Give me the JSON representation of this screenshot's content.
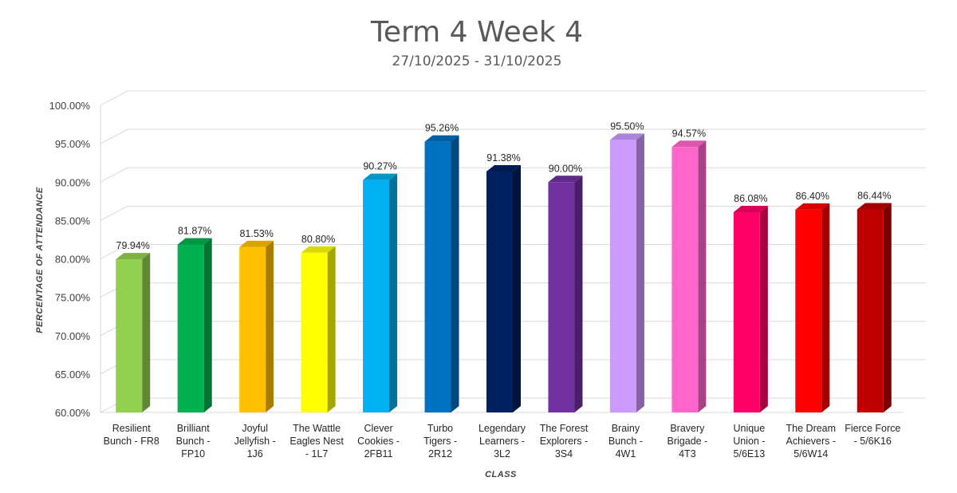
{
  "chart_data": {
    "type": "bar",
    "title": "Term 4 Week 4",
    "subtitle": "27/10/2025 - 31/10/2025",
    "xlabel": "CLASS",
    "ylabel": "PERCENTAGE OF ATTENDANCE",
    "ylim": [
      60,
      100
    ],
    "yticks": [
      60,
      65,
      70,
      75,
      80,
      85,
      90,
      95,
      100
    ],
    "ytick_labels": [
      "60.00%",
      "65.00%",
      "70.00%",
      "75.00%",
      "80.00%",
      "85.00%",
      "90.00%",
      "95.00%",
      "100.00%"
    ],
    "grid": true,
    "legend": "none",
    "categories": [
      [
        "Resilient",
        "Bunch - FR8"
      ],
      [
        "Brilliant",
        "Bunch -",
        "FP10"
      ],
      [
        "Joyful",
        "Jellyfish -",
        "1J6"
      ],
      [
        "The Wattle",
        "Eagles Nest",
        "- 1L7"
      ],
      [
        "Clever",
        "Cookies -",
        "2FB11"
      ],
      [
        "Turbo",
        "Tigers -",
        "2R12"
      ],
      [
        "Legendary",
        "Learners -",
        "3L2"
      ],
      [
        "The Forest",
        "Explorers -",
        "3S4"
      ],
      [
        "Brainy",
        "Bunch -",
        "4W1"
      ],
      [
        "Bravery",
        "Brigade -",
        "4T3"
      ],
      [
        "Unique",
        "Union -",
        "5/6E13"
      ],
      [
        "The Dream",
        "Achievers -",
        "5/6W14"
      ],
      [
        "Fierce Force",
        "- 5/6K16"
      ]
    ],
    "values": [
      79.94,
      81.87,
      81.53,
      80.8,
      90.27,
      95.26,
      91.38,
      90.0,
      95.5,
      94.57,
      86.08,
      86.4,
      86.44
    ],
    "data_labels": [
      "79.94%",
      "81.87%",
      "81.53%",
      "80.80%",
      "90.27%",
      "95.26%",
      "91.38%",
      "90.00%",
      "95.50%",
      "94.57%",
      "86.08%",
      "86.40%",
      "86.44%"
    ],
    "colors": [
      "#92d050",
      "#00b050",
      "#ffc000",
      "#ffff00",
      "#00b0f0",
      "#0070c0",
      "#002060",
      "#7030a0",
      "#cc99ff",
      "#ff66cc",
      "#ff0066",
      "#ff0000",
      "#c00000"
    ],
    "grid_color": "#d9d9d9"
  }
}
